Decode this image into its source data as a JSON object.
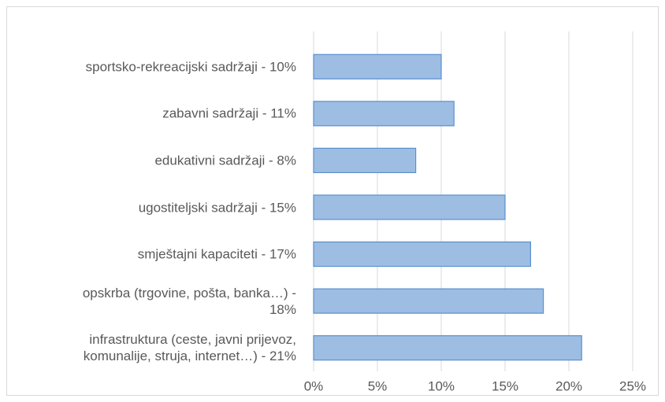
{
  "chart_data": {
    "type": "bar",
    "orientation": "horizontal",
    "categories": [
      "sportsko-rekreacijski sadržaji - 10%",
      "zabavni sadržaji - 11%",
      "edukativni sadržaji - 8%",
      "ugostiteljski sadržaji - 15%",
      "smještajni kapaciteti - 17%",
      "opskrba (trgovine, pošta, banka…) -\n18%",
      "infrastruktura (ceste, javni prijevoz,\nkomunalije, struja, internet…) - 21%"
    ],
    "values": [
      10,
      11,
      8,
      15,
      17,
      18,
      21
    ],
    "color": "#9dbde3",
    "xlim": [
      0,
      25
    ],
    "xticks": [
      {
        "value": 0,
        "label": "0%"
      },
      {
        "value": 5,
        "label": "5%"
      },
      {
        "value": 10,
        "label": "10%"
      },
      {
        "value": 15,
        "label": "15%"
      },
      {
        "value": 20,
        "label": "20%"
      },
      {
        "value": 25,
        "label": "25%"
      }
    ],
    "grid": true
  }
}
